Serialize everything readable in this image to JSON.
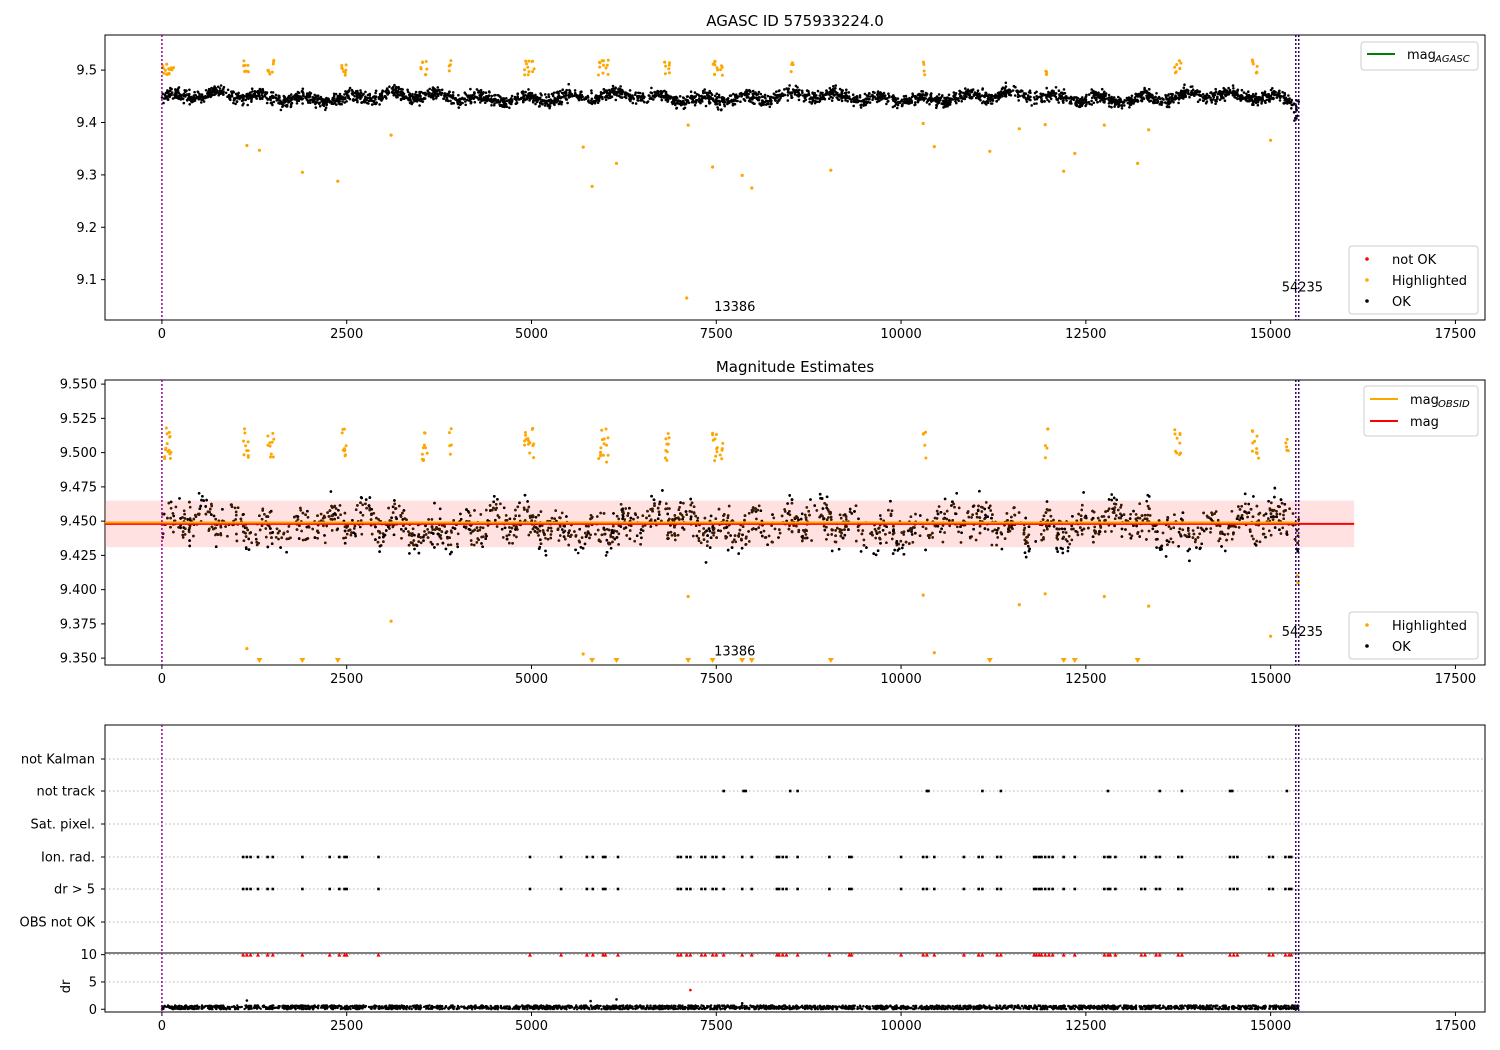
{
  "chart_data": [
    {
      "type": "scatter",
      "title": "AGASC ID 575933224.0",
      "xlim": [
        -770,
        17900
      ],
      "ylim": [
        9.023,
        9.567
      ],
      "xticks": [
        "0",
        "2500",
        "5000",
        "7500",
        "10000",
        "12500",
        "15000",
        "17500"
      ],
      "yticks": [
        "9.1",
        "9.2",
        "9.3",
        "9.4",
        "9.5"
      ],
      "vlines_x": [
        0,
        15340,
        15380
      ],
      "band": {
        "center": 9.448,
        "amplitude": 0.017,
        "spread": 0.012
      },
      "series": [
        {
          "name": "mag",
          "sub": "AGASC",
          "kind": "line",
          "color": "#008000"
        },
        {
          "name": "not OK",
          "kind": "points",
          "color": "#ff0000"
        },
        {
          "name": "Highlighted",
          "kind": "points",
          "color": "#ffa500",
          "outliers": [
            {
              "x": 1150,
              "y": 9.356
            },
            {
              "x": 1320,
              "y": 9.347
            },
            {
              "x": 1900,
              "y": 9.305
            },
            {
              "x": 2380,
              "y": 9.288
            },
            {
              "x": 3100,
              "y": 9.376
            },
            {
              "x": 5700,
              "y": 9.353
            },
            {
              "x": 5820,
              "y": 9.278
            },
            {
              "x": 6150,
              "y": 9.322
            },
            {
              "x": 7100,
              "y": 9.065
            },
            {
              "x": 7120,
              "y": 9.395
            },
            {
              "x": 7450,
              "y": 9.315
            },
            {
              "x": 7850,
              "y": 9.299
            },
            {
              "x": 7980,
              "y": 9.275
            },
            {
              "x": 9050,
              "y": 9.309
            },
            {
              "x": 10300,
              "y": 9.398
            },
            {
              "x": 10450,
              "y": 9.354
            },
            {
              "x": 11200,
              "y": 9.345
            },
            {
              "x": 11600,
              "y": 9.388
            },
            {
              "x": 11950,
              "y": 9.396
            },
            {
              "x": 12200,
              "y": 9.307
            },
            {
              "x": 12350,
              "y": 9.341
            },
            {
              "x": 12750,
              "y": 9.395
            },
            {
              "x": 13200,
              "y": 9.322
            },
            {
              "x": 13350,
              "y": 9.386
            },
            {
              "x": 15000,
              "y": 9.366
            }
          ]
        },
        {
          "name": "OK",
          "kind": "points",
          "color": "#000000"
        }
      ],
      "annotations": [
        {
          "text": "13386",
          "x": 7470,
          "y": 9.04
        },
        {
          "text": "54235",
          "x": 15150,
          "y": 9.077
        }
      ]
    },
    {
      "type": "scatter",
      "title": "Magnitude Estimates",
      "xlim": [
        -770,
        17900
      ],
      "ylim": [
        9.345,
        9.553
      ],
      "xticks": [
        "0",
        "2500",
        "5000",
        "7500",
        "10000",
        "12500",
        "15000",
        "17500"
      ],
      "yticks": [
        "9.350",
        "9.375",
        "9.400",
        "9.425",
        "9.450",
        "9.475",
        "9.500",
        "9.525",
        "9.550"
      ],
      "vlines_x": [
        0,
        15340,
        15380
      ],
      "mag": 9.448,
      "mag_obsid": 9.449,
      "band_range": [
        9.431,
        9.465
      ],
      "band_x": [
        -770,
        16130
      ],
      "series": [
        {
          "name": "mag",
          "sub": "OBSID",
          "kind": "line",
          "color": "#ffa500"
        },
        {
          "name": "mag",
          "kind": "line",
          "color": "#ff0000"
        },
        {
          "name": "Highlighted",
          "kind": "points",
          "color": "#ffa500"
        },
        {
          "name": "OK",
          "kind": "points",
          "color": "#000000"
        }
      ],
      "low_markers_x": [
        1320,
        1900,
        2380,
        5820,
        6150,
        7120,
        7450,
        7850,
        7980,
        9050,
        11200,
        12200,
        12350,
        13200
      ],
      "annotations": [
        {
          "text": "13386",
          "x": 7470,
          "y": 9.352
        },
        {
          "text": "54235",
          "x": 15150,
          "y": 9.366
        }
      ]
    },
    {
      "type": "scatter",
      "xlim": [
        -770,
        17900
      ],
      "categories": [
        "not Kalman",
        "not track",
        "Sat. pixel.",
        "Ion. rad.",
        "dr > 5",
        "OBS not OK"
      ],
      "flag_x": {
        "not Kalman": [],
        "not track": [
          7600,
          7870,
          7900,
          8500,
          8600,
          10350,
          10370,
          11100,
          11350,
          12800,
          13500,
          13800,
          14450,
          14480,
          15220
        ],
        "Sat. pixel.": [],
        "Ion. rad.": [
          1100,
          1150,
          1200,
          1300,
          1430,
          1500,
          1900,
          2270,
          2400,
          2470,
          2500,
          2930,
          4980,
          5400,
          5750,
          5830,
          5970,
          6000,
          6170,
          6980,
          7020,
          7100,
          7150,
          7300,
          7350,
          7450,
          7500,
          7600,
          7850,
          7980,
          8320,
          8350,
          8400,
          8450,
          8600,
          9030,
          9300,
          9330,
          10000,
          10300,
          10350,
          10450,
          10850,
          11050,
          11100,
          11300,
          11350,
          11800,
          11830,
          11870,
          11900,
          11950,
          12000,
          12050,
          12200,
          12350,
          12750,
          12800,
          12830,
          12900,
          13250,
          13300,
          13450,
          13500,
          13750,
          13800,
          14450,
          14500,
          14550,
          14980,
          15030,
          15200,
          15250,
          15280
        ],
        "dr > 5": [
          1100,
          1150,
          1200,
          1300,
          1430,
          1500,
          1900,
          2270,
          2400,
          2470,
          2500,
          2930,
          4980,
          5400,
          5750,
          5830,
          5970,
          6000,
          6170,
          6980,
          7020,
          7100,
          7150,
          7300,
          7350,
          7450,
          7500,
          7600,
          7850,
          7980,
          8320,
          8350,
          8400,
          8450,
          8600,
          9030,
          9300,
          9330,
          10000,
          10300,
          10350,
          10450,
          10850,
          11050,
          11100,
          11300,
          11350,
          11800,
          11830,
          11870,
          11900,
          11950,
          12000,
          12050,
          12200,
          12350,
          12750,
          12800,
          12830,
          12900,
          13250,
          13300,
          13450,
          13500,
          13750,
          13800,
          14450,
          14500,
          14550,
          14980,
          15030,
          15200,
          15250,
          15280
        ],
        "OBS not OK": []
      },
      "vlines_x": [
        0,
        15340,
        15380
      ]
    },
    {
      "type": "scatter",
      "ylabel": "dr",
      "xlim": [
        -770,
        17900
      ],
      "ylim": [
        -0.5,
        10.3
      ],
      "xticks": [
        "0",
        "2500",
        "5000",
        "7500",
        "10000",
        "12500",
        "15000",
        "17500"
      ],
      "yticks": [
        "0",
        "5",
        "10"
      ],
      "vlines_x": [
        0,
        15340,
        15380
      ],
      "clipped_value": 10,
      "clipped_x": [
        1100,
        1150,
        1200,
        1300,
        1430,
        1500,
        1900,
        2270,
        2400,
        2470,
        2500,
        2930,
        4980,
        5400,
        5750,
        5830,
        5970,
        6000,
        6170,
        6980,
        7020,
        7100,
        7150,
        7300,
        7350,
        7450,
        7500,
        7600,
        7850,
        7980,
        8320,
        8350,
        8400,
        8450,
        8600,
        9030,
        9300,
        9330,
        10000,
        10300,
        10350,
        10450,
        10850,
        11050,
        11100,
        11300,
        11350,
        11800,
        11830,
        11870,
        11900,
        11950,
        12000,
        12050,
        12200,
        12350,
        12750,
        12800,
        12830,
        12900,
        13250,
        13300,
        13450,
        13500,
        13750,
        13800,
        14450,
        14500,
        14550,
        14980,
        15030,
        15200,
        15250,
        15280
      ],
      "extra_points": [
        {
          "x": 7150,
          "y": 3.5,
          "color": "#ff0000"
        },
        {
          "x": 5800,
          "y": 1.5,
          "color": "#000000"
        },
        {
          "x": 6150,
          "y": 1.8,
          "color": "#000000"
        },
        {
          "x": 1150,
          "y": 1.6,
          "color": "#000000"
        },
        {
          "x": 7850,
          "y": 1.1,
          "color": "#000000"
        }
      ],
      "baseline_range": [
        0,
        0.7
      ]
    }
  ]
}
